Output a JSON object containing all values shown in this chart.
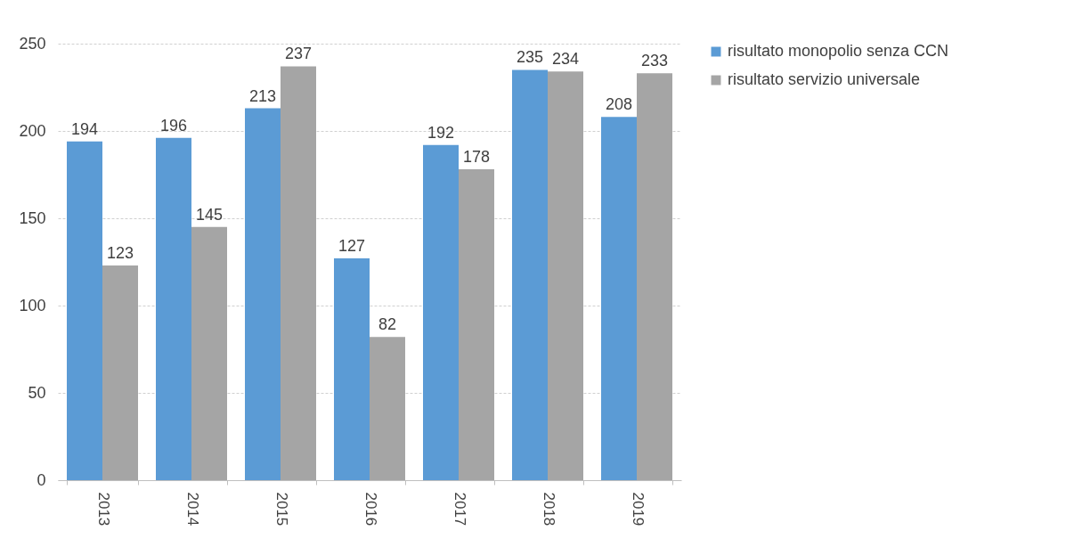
{
  "chart_data": {
    "type": "bar",
    "categories": [
      "2013",
      "2014",
      "2015",
      "2016",
      "2017",
      "2018",
      "2019"
    ],
    "series": [
      {
        "name": "risultato monopolio senza CCN",
        "color": "#5b9bd5",
        "values": [
          194,
          196,
          213,
          127,
          192,
          235,
          208
        ]
      },
      {
        "name": "risultato servizio universale",
        "color": "#a5a5a5",
        "values": [
          123,
          145,
          237,
          82,
          178,
          234,
          233
        ]
      }
    ],
    "ylim": [
      0,
      250
    ],
    "yticks": [
      0,
      50,
      100,
      150,
      200,
      250
    ],
    "grid": "y",
    "legend": "right",
    "data_labels": true
  }
}
